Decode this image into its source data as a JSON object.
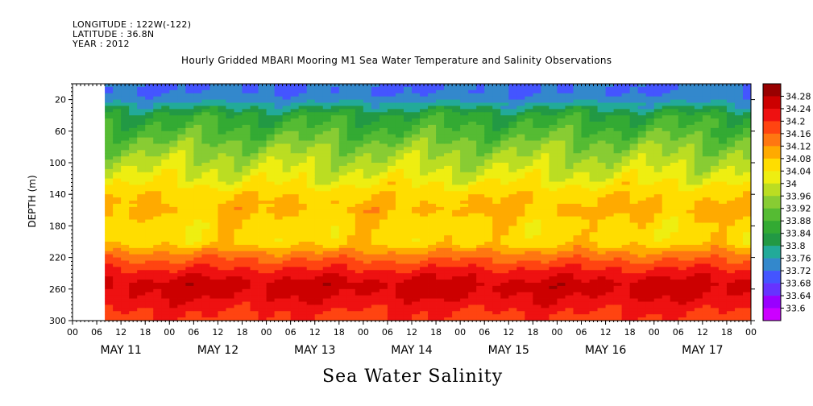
{
  "header": {
    "longitude": "LONGITUDE : 122W(-122)",
    "latitude": "LATITUDE : 36.8N",
    "year": "YEAR : 2012"
  },
  "title": "Hourly Gridded MBARI Mooring M1 Sea Water Temperature and Salinity Observations",
  "bottom_title": "Sea Water Salinity",
  "chart_data": {
    "type": "heatmap",
    "title": "Hourly Gridded MBARI Mooring M1 Sea Water Temperature and Salinity Observations",
    "xlabel": "",
    "ylabel": "DEPTH (m)",
    "colorbar_label": "Sea Water Salinity",
    "y_axis": {
      "range": [
        300,
        0
      ],
      "ticks": [
        20,
        60,
        100,
        140,
        180,
        220,
        260,
        300
      ],
      "inverted": true
    },
    "x_axis": {
      "range_hours": [
        0,
        168
      ],
      "hour_ticks": [
        "00",
        "06",
        "12",
        "18",
        "00",
        "06",
        "12",
        "18",
        "00",
        "06",
        "12",
        "18",
        "00",
        "06",
        "12",
        "18",
        "00",
        "06",
        "12",
        "18",
        "00",
        "06",
        "12",
        "18",
        "00",
        "06",
        "12",
        "18",
        "00"
      ],
      "day_labels": [
        "MAY 11",
        "MAY 12",
        "MAY 13",
        "MAY 14",
        "MAY 15",
        "MAY 16",
        "MAY 17"
      ]
    },
    "data_start_hour": 8,
    "colorbar_levels": [
      33.6,
      33.64,
      33.68,
      33.72,
      33.76,
      33.8,
      33.84,
      33.88,
      33.92,
      33.96,
      34,
      34.04,
      34.08,
      34.12,
      34.16,
      34.2,
      34.24,
      34.28
    ],
    "colorbar_labels": [
      "34.28",
      "34.24",
      "34.2",
      "34.16",
      "34.12",
      "34.08",
      "34.04",
      "34",
      "33.96",
      "33.92",
      "33.88",
      "33.84",
      "33.8",
      "33.76",
      "33.72",
      "33.68",
      "33.64",
      "33.6"
    ],
    "colors": [
      "#cc00ff",
      "#9900ff",
      "#6633ff",
      "#4455ff",
      "#3388cc",
      "#22aa99",
      "#229944",
      "#33aa33",
      "#55bb33",
      "#88cc33",
      "#bbdd22",
      "#eeee11",
      "#ffdd00",
      "#ffaa00",
      "#ff7711",
      "#ff4411",
      "#ee1111",
      "#cc0000",
      "#990000"
    ],
    "depth_profile": [
      {
        "depth": 10,
        "value": 33.72
      },
      {
        "depth": 20,
        "value": 33.74
      },
      {
        "depth": 40,
        "value": 33.85
      },
      {
        "depth": 60,
        "value": 33.89
      },
      {
        "depth": 80,
        "value": 33.94
      },
      {
        "depth": 100,
        "value": 33.98
      },
      {
        "depth": 120,
        "value": 34.02
      },
      {
        "depth": 140,
        "value": 34.07
      },
      {
        "depth": 160,
        "value": 34.09
      },
      {
        "depth": 180,
        "value": 34.06
      },
      {
        "depth": 200,
        "value": 34.06
      },
      {
        "depth": 220,
        "value": 34.15
      },
      {
        "depth": 240,
        "value": 34.22
      },
      {
        "depth": 255,
        "value": 34.26
      },
      {
        "depth": 270,
        "value": 34.24
      },
      {
        "depth": 290,
        "value": 34.2
      },
      {
        "depth": 300,
        "value": 34.19
      }
    ]
  }
}
